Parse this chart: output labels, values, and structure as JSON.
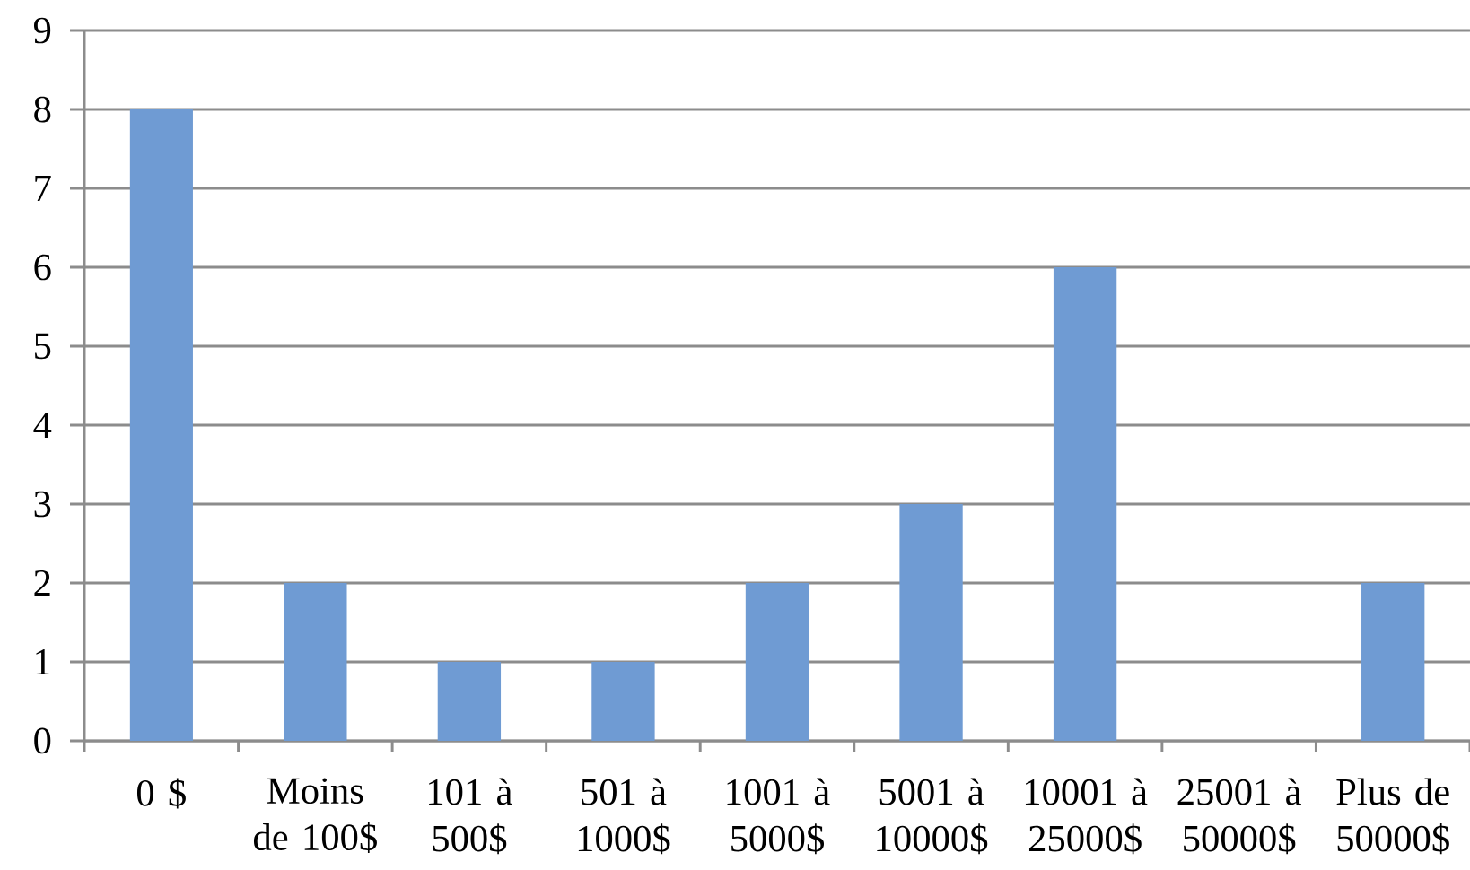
{
  "chart_data": {
    "type": "bar",
    "categories": [
      "0 $",
      "Moins de 100$",
      "101 à 500$",
      "501 à 1000$",
      "1001 à 5000$",
      "5001 à 10000$",
      "10001 à 25000$",
      "25001 à 50000$",
      "Plus de 50000$"
    ],
    "values": [
      8,
      2,
      1,
      1,
      2,
      3,
      6,
      0,
      2
    ],
    "color": "#6f9bd3",
    "ylim": [
      0,
      9
    ],
    "yticks": [
      0,
      1,
      2,
      3,
      4,
      5,
      6,
      7,
      8,
      9
    ],
    "grid": "y"
  }
}
